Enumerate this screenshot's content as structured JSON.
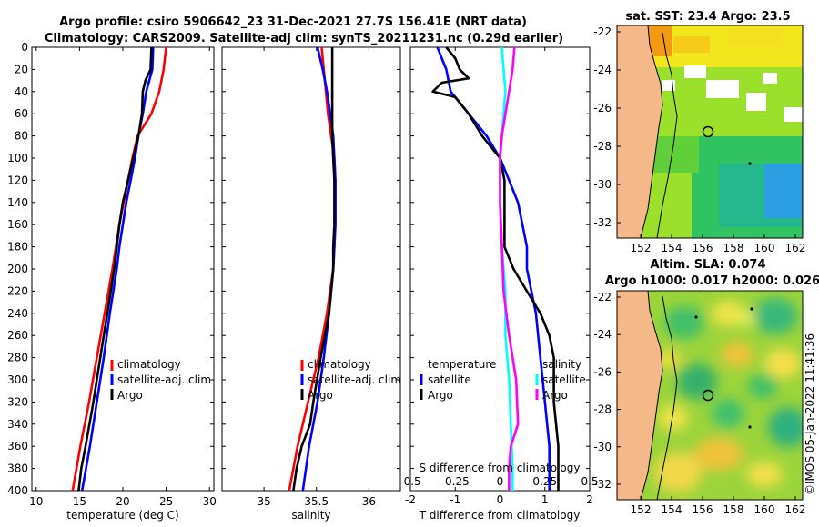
{
  "header": {
    "line1": "Argo profile: csiro 5906642_23 31-Dec-2021 27.7S 156.41E (NRT data)",
    "line2": "Climatology: CARS2009. Satellite-adj clim: synTS_20211231.nc (0.29d earlier)"
  },
  "colors": {
    "climatology": "#ff0000",
    "satellite": "#0000ff",
    "argo": "#000000",
    "salinity_diff": "#ff00ff",
    "satellite_salinity_diff": "#00ffff"
  },
  "chart_data": [
    {
      "type": "line",
      "xlabel": "temperature (deg C)",
      "ylabel": "",
      "xlim": [
        9.5,
        30.5
      ],
      "ylim": [
        400,
        0
      ],
      "xticks": [
        "10",
        "15",
        "20",
        "25",
        "30"
      ],
      "yticks": [
        "0",
        "20",
        "40",
        "60",
        "80",
        "100",
        "120",
        "140",
        "160",
        "180",
        "200",
        "220",
        "240",
        "260",
        "280",
        "300",
        "320",
        "340",
        "360",
        "380",
        "400"
      ],
      "legend": [
        "climatology",
        "satellite-adj. clim",
        "Argo"
      ],
      "series": [
        {
          "name": "climatology",
          "depth": [
            0,
            20,
            40,
            60,
            80,
            100,
            120,
            140,
            160,
            180,
            200,
            240,
            280,
            320,
            360,
            400
          ],
          "values": [
            25.0,
            24.7,
            24.2,
            23.3,
            21.7,
            21.1,
            20.6,
            20.1,
            19.6,
            19.2,
            18.8,
            17.9,
            17.0,
            16.1,
            15.1,
            14.2
          ]
        },
        {
          "name": "satellite-adj. clim",
          "depth": [
            0,
            20,
            40,
            60,
            80,
            100,
            120,
            140,
            160,
            180,
            200,
            240,
            280,
            320,
            360,
            400
          ],
          "values": [
            23.5,
            23.4,
            22.7,
            22.3,
            21.8,
            21.4,
            20.9,
            20.4,
            20.0,
            19.6,
            19.3,
            18.5,
            17.8,
            17.0,
            16.2,
            15.3
          ]
        },
        {
          "name": "Argo",
          "depth": [
            0,
            20,
            30,
            40,
            60,
            80,
            100,
            120,
            140,
            160,
            180,
            200,
            240,
            280,
            320,
            360,
            380,
            400
          ],
          "values": [
            23.3,
            23.2,
            22.6,
            22.3,
            22.2,
            21.8,
            21.2,
            20.6,
            20.0,
            19.6,
            19.3,
            19.0,
            18.2,
            17.4,
            16.6,
            15.7,
            15.2,
            14.9
          ]
        }
      ]
    },
    {
      "type": "line",
      "xlabel": "salinity",
      "xlim": [
        34.6,
        36.3
      ],
      "ylim": [
        400,
        0
      ],
      "xticks": [
        "35",
        "35.5",
        "36"
      ],
      "legend": [
        "climatology",
        "satellite-adj. clim",
        "Argo"
      ],
      "series": [
        {
          "name": "climatology",
          "depth": [
            0,
            20,
            40,
            60,
            80,
            100,
            120,
            140,
            160,
            180,
            200,
            240,
            280,
            320,
            360,
            400
          ],
          "values": [
            35.55,
            35.57,
            35.59,
            35.61,
            35.64,
            35.67,
            35.68,
            35.68,
            35.68,
            35.67,
            35.66,
            35.6,
            35.52,
            35.42,
            35.32,
            35.24
          ]
        },
        {
          "name": "satellite-adj. clim",
          "depth": [
            0,
            20,
            40,
            60,
            80,
            100,
            120,
            140,
            160,
            180,
            200,
            240,
            280,
            320,
            360,
            400
          ],
          "values": [
            35.51,
            35.56,
            35.6,
            35.63,
            35.66,
            35.67,
            35.68,
            35.68,
            35.68,
            35.67,
            35.66,
            35.62,
            35.57,
            35.51,
            35.43,
            35.37
          ]
        },
        {
          "name": "Argo",
          "depth": [
            0,
            20,
            40,
            60,
            80,
            100,
            120,
            140,
            160,
            180,
            200,
            240,
            280,
            320,
            340,
            360,
            380,
            400
          ],
          "values": [
            35.65,
            35.65,
            35.65,
            35.65,
            35.65,
            35.66,
            35.67,
            35.67,
            35.67,
            35.66,
            35.66,
            35.62,
            35.54,
            35.47,
            35.44,
            35.36,
            35.31,
            35.28
          ]
        }
      ]
    },
    {
      "type": "line",
      "xlabel": "T difference from climatology",
      "top_xlabel": "S difference from climatology",
      "xlim": [
        -2.0,
        2.0
      ],
      "ylim": [
        400,
        0
      ],
      "xticks": [
        "-2",
        "-1",
        "0",
        "1",
        "2"
      ],
      "top_xticks": [
        "-0.5",
        "-0.25",
        "0",
        "0.25",
        "0.5"
      ],
      "legend_temperature_title": "temperature",
      "legend_salinity_title": "salinity",
      "legend_temperature": [
        "satellite",
        "Argo"
      ],
      "legend_salinity": [
        "satellite",
        "Argo"
      ],
      "series": [
        {
          "name": "temperature satellite",
          "depth": [
            0,
            20,
            40,
            60,
            80,
            100,
            120,
            140,
            160,
            180,
            200,
            240,
            280,
            320,
            360,
            400
          ],
          "values": [
            -1.4,
            -1.2,
            -1.1,
            -0.7,
            -0.3,
            0.0,
            0.2,
            0.4,
            0.5,
            0.6,
            0.6,
            0.8,
            0.9,
            1.0,
            1.1,
            1.1
          ]
        },
        {
          "name": "temperature Argo",
          "depth": [
            0,
            10,
            20,
            28,
            32,
            40,
            45,
            60,
            80,
            100,
            120,
            140,
            160,
            180,
            200,
            220,
            240,
            260,
            280,
            320,
            360,
            400
          ],
          "values": [
            -1.2,
            -1.0,
            -0.9,
            -0.7,
            -1.3,
            -1.5,
            -1.0,
            -0.7,
            -0.4,
            0.0,
            0.1,
            0.1,
            0.1,
            0.1,
            0.3,
            0.6,
            0.9,
            1.1,
            1.2,
            1.2,
            1.3,
            1.3
          ]
        },
        {
          "name": "salinity satellite",
          "depth": [
            0,
            20,
            40,
            60,
            80,
            100,
            140,
            180,
            220,
            260,
            300,
            340,
            380,
            400
          ],
          "values": [
            0.01,
            0.02,
            0.03,
            0.02,
            0.01,
            0.0,
            0.0,
            0.01,
            0.03,
            0.03,
            0.05,
            0.06,
            0.07,
            0.07
          ]
        },
        {
          "name": "salinity Argo",
          "depth": [
            0,
            20,
            40,
            60,
            80,
            100,
            140,
            180,
            220,
            260,
            300,
            340,
            360,
            380,
            400
          ],
          "values": [
            0.08,
            0.07,
            0.05,
            0.03,
            0.01,
            0.0,
            0.0,
            0.01,
            0.02,
            0.05,
            0.09,
            0.1,
            0.06,
            0.05,
            0.05
          ]
        }
      ]
    }
  ],
  "maps": {
    "sst": {
      "title": "sat. SST: 23.4 Argo: 23.5",
      "lat_ticks": [
        "-22",
        "-24",
        "-26",
        "-28",
        "-30",
        "-32"
      ],
      "lon_ticks": [
        "152",
        "154",
        "156",
        "158",
        "160",
        "162"
      ]
    },
    "sla": {
      "title1": "Altim. SLA: 0.074",
      "title2": "Argo h1000: 0.017 h2000: 0.026",
      "lat_ticks": [
        "-22",
        "-24",
        "-26",
        "-28",
        "-30",
        "-32"
      ],
      "lon_ticks": [
        "152",
        "154",
        "156",
        "158",
        "160",
        "162"
      ]
    }
  },
  "footer": {
    "credit": "©IMOS 05-Jan-2022 11:41:36"
  }
}
